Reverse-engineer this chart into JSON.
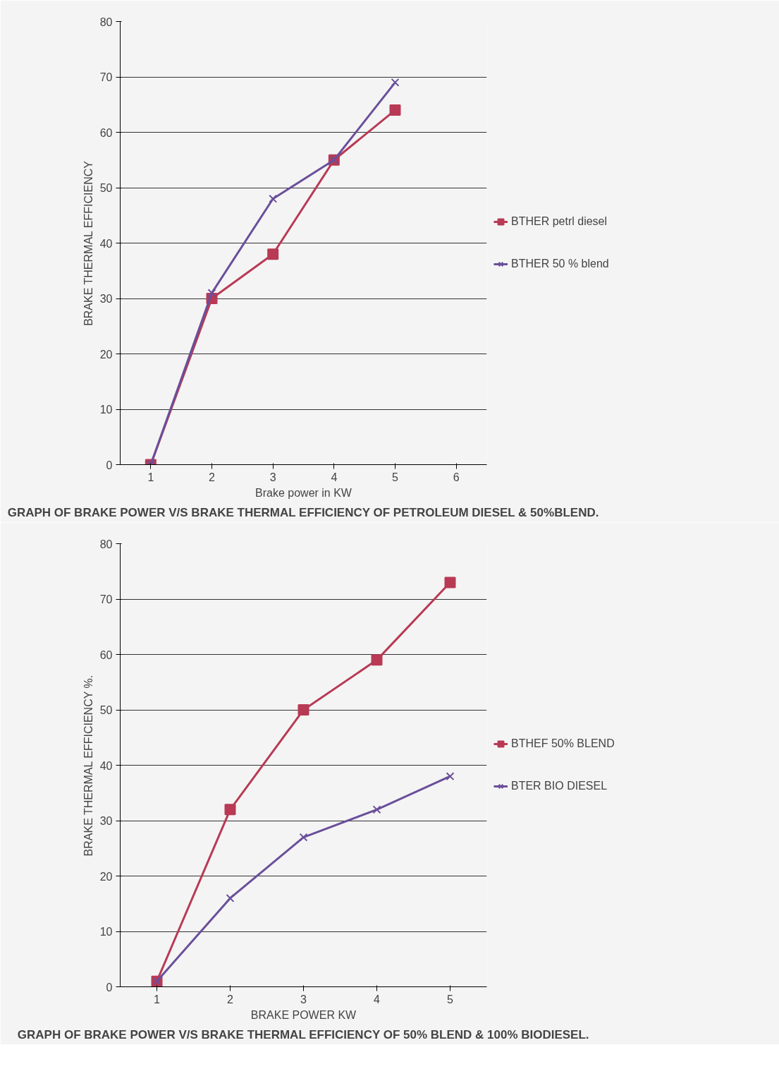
{
  "chart_data": [
    {
      "type": "line",
      "title": "GRAPH OF BRAKE POWER V/S BRAKE THERMAL EFFICIENCY OF PETROLEUM DIESEL & 50%BLEND.",
      "xlabel": "Brake power in KW",
      "ylabel": "BRAKE THERMAL EFFICIENCY",
      "categories": [
        "1",
        "2",
        "3",
        "4",
        "5",
        "6"
      ],
      "ylim": [
        0,
        80
      ],
      "yticks": [
        0,
        10,
        20,
        30,
        40,
        50,
        60,
        70,
        80
      ],
      "grid": "y",
      "legend": "right",
      "series": [
        {
          "name": "BTHER petrl diesel",
          "color": "#b83a55",
          "marker": "square",
          "values": [
            0,
            30,
            38,
            55,
            64,
            null
          ]
        },
        {
          "name": "BTHER 50 % blend",
          "color": "#6a4f9a",
          "marker": "cross",
          "values": [
            0,
            31,
            48,
            55,
            69,
            null
          ]
        }
      ]
    },
    {
      "type": "line",
      "title": "GRAPH OF BRAKE POWER V/S BRAKE THERMAL EFFICIENCY OF 50% BLEND & 100% BIODIESEL.",
      "xlabel": "BRAKE POWER KW",
      "ylabel": "BRAKE THERMAL EFFICIENCY %.",
      "categories": [
        "1",
        "2",
        "3",
        "4",
        "5"
      ],
      "ylim": [
        0,
        80
      ],
      "yticks": [
        0,
        10,
        20,
        30,
        40,
        50,
        60,
        70,
        80
      ],
      "grid": "y",
      "legend": "right",
      "series": [
        {
          "name": "BTHEF 50% BLEND",
          "color": "#b83a55",
          "marker": "square",
          "values": [
            1,
            32,
            50,
            59,
            73
          ]
        },
        {
          "name": "BTER BIO DIESEL",
          "color": "#6a4f9a",
          "marker": "cross",
          "values": [
            1,
            16,
            27,
            32,
            38
          ]
        }
      ]
    }
  ]
}
